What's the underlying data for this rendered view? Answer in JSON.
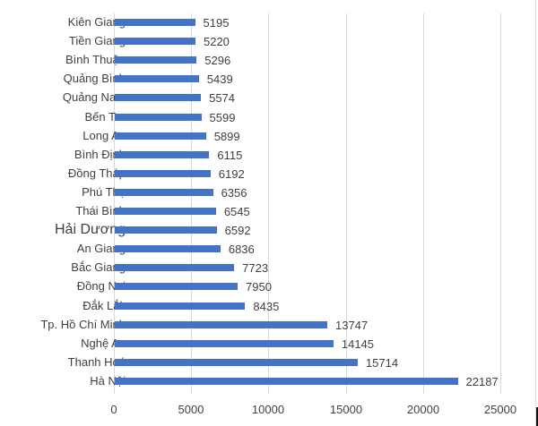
{
  "chart_data": {
    "type": "bar",
    "orientation": "horizontal",
    "title": "",
    "xlabel": "",
    "ylabel": "",
    "xlim": [
      0,
      25000
    ],
    "xticks": [
      0,
      5000,
      10000,
      15000,
      20000,
      25000
    ],
    "grid": true,
    "legend": null,
    "bar_color": "#4472C4",
    "categories": [
      "Kiên Giang",
      "Tiền Giang",
      "Bình Thuận",
      "Quảng Bình",
      "Quảng Nam",
      "Bến Tre",
      "Long An",
      "Bình Định",
      "Đồng Tháp",
      "Phú Thọ",
      "Thái Bình",
      "Hải Dương",
      "An Giang",
      "Bắc Giang",
      "Đồng Nai",
      "Đắk Lắk",
      "Tp. Hồ Chí Minh",
      "Nghệ An",
      "Thanh Hoá",
      "Hà Nội"
    ],
    "values": [
      5195,
      5220,
      5296,
      5439,
      5574,
      5599,
      5899,
      6115,
      6192,
      6356,
      6545,
      6592,
      6836,
      7723,
      7950,
      8435,
      13747,
      14145,
      15714,
      22187
    ],
    "data_labels": [
      "5195",
      "5220",
      "5296",
      "5439",
      "5574",
      "5599",
      "5899",
      "6115",
      "6192",
      "6356",
      "6545",
      "6592",
      "6836",
      "7723",
      "7950",
      "8435",
      "13747",
      "14145",
      "15714",
      "22187"
    ],
    "tick_labels": [
      "0",
      "5000",
      "10000",
      "15000",
      "20000",
      "25000"
    ]
  }
}
